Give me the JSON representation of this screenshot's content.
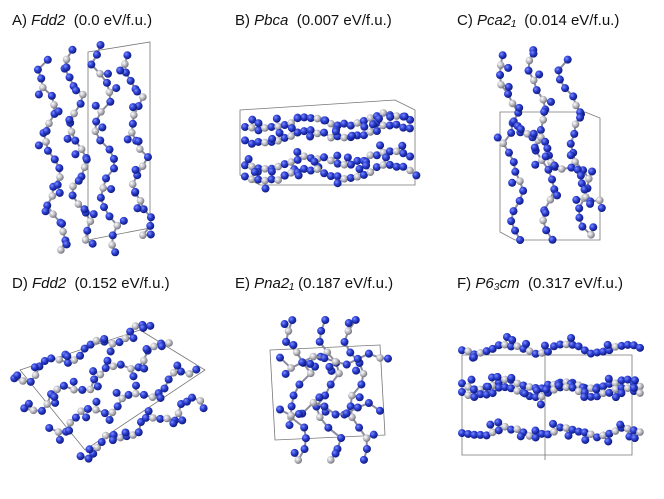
{
  "panels": [
    {
      "letter": "A)",
      "group": "Fdd2",
      "energy": "(0.0 eV/f.u.)"
    },
    {
      "letter": "B)",
      "group": "Pbca",
      "energy": "(0.007 eV/f.u.)"
    },
    {
      "letter": "C)",
      "group": "Pca2₁",
      "energy": "(0.014 eV/f.u.)"
    },
    {
      "letter": "D)",
      "group": "Fdd2",
      "energy": "(0.152 eV/f.u.)"
    },
    {
      "letter": "E)",
      "group": "Pna2₁",
      "energy": "(0.187 eV/f.u.)"
    },
    {
      "letter": "F)",
      "group": "P6₃cm",
      "energy": "(0.317 eV/f.u.)"
    }
  ]
}
